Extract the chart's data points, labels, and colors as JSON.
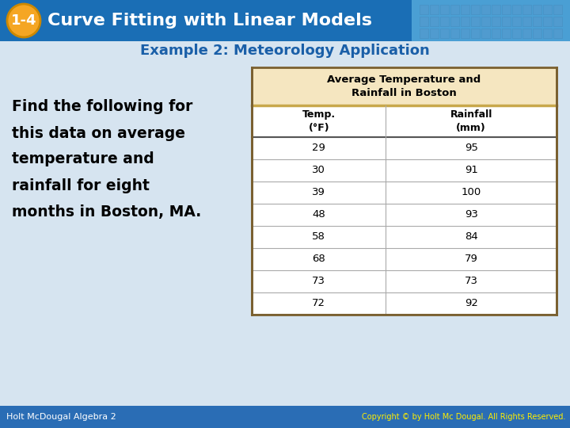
{
  "header_title": "1-4",
  "header_text": "Curve Fitting with Linear Models",
  "header_bg_left": "#1a6eb5",
  "header_bg_right": "#4a9fd4",
  "header_badge_bg": "#f5a623",
  "header_badge_border": "#cc8800",
  "subheading": "Example 2: Meteorology Application",
  "subheading_color": "#1a5fa8",
  "body_bg": "#d6e4f0",
  "left_text_lines": [
    "Find the following for",
    "this data on average",
    "temperature and",
    "rainfall for eight",
    "months in Boston, MA."
  ],
  "left_text_color": "#000000",
  "table_title": "Average Temperature and\nRainfall in Boston",
  "table_title_bg": "#f5e6c0",
  "table_title_border": "#c8a84b",
  "table_header_bg": "#ffffff",
  "table_data_bg": "#ffffff",
  "col1_header": "Temp.\n(°F)",
  "col2_header": "Rainfall\n(mm)",
  "table_data": [
    [
      29,
      95
    ],
    [
      30,
      91
    ],
    [
      39,
      100
    ],
    [
      48,
      93
    ],
    [
      58,
      84
    ],
    [
      68,
      79
    ],
    [
      73,
      73
    ],
    [
      72,
      92
    ]
  ],
  "table_outer_border": "#7a6030",
  "table_inner_line": "#aaaaaa",
  "table_thick_line": "#555555",
  "footer_text_left": "Holt McDougal Algebra 2",
  "footer_text_right": "Copyright © by Holt Mc Dougal. All Rights Reserved.",
  "footer_bg": "#2a6db5",
  "footer_text_color": "#ffffff",
  "footer_text_right_color": "#ffee00",
  "tile_color": "#5599cc",
  "tile_border": "#4488bb"
}
